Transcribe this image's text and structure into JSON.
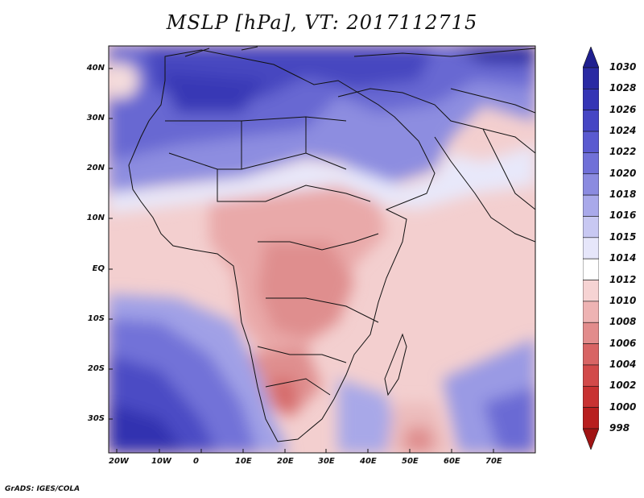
{
  "title": "MSLP [hPa], VT: 2017112715",
  "credit": "GrADS: IGES/COLA",
  "map": {
    "lat_labels": [
      "40N",
      "30N",
      "20N",
      "10N",
      "EQ",
      "10S",
      "20S",
      "30S"
    ],
    "lon_labels": [
      "20W",
      "10W",
      "0",
      "10E",
      "20E",
      "30E",
      "40E",
      "50E",
      "60E",
      "70E"
    ]
  },
  "colorbar": {
    "labels": [
      "1030",
      "1028",
      "1026",
      "1024",
      "1022",
      "1020",
      "1018",
      "1016",
      "1015",
      "1014",
      "1012",
      "1010",
      "1008",
      "1006",
      "1004",
      "1002",
      "1000",
      "998"
    ],
    "colors": [
      "#1f1f8f",
      "#2a2aa3",
      "#3535b5",
      "#4646c4",
      "#5a5ad0",
      "#7070d8",
      "#8b8be0",
      "#a9a9ea",
      "#c8c8f2",
      "#e6e6fa",
      "#ffffff",
      "#f6d3d3",
      "#eeb3b3",
      "#e28c8c",
      "#d86464",
      "#d24a4a",
      "#c83232",
      "#b81f1f",
      "#a01414"
    ]
  }
}
